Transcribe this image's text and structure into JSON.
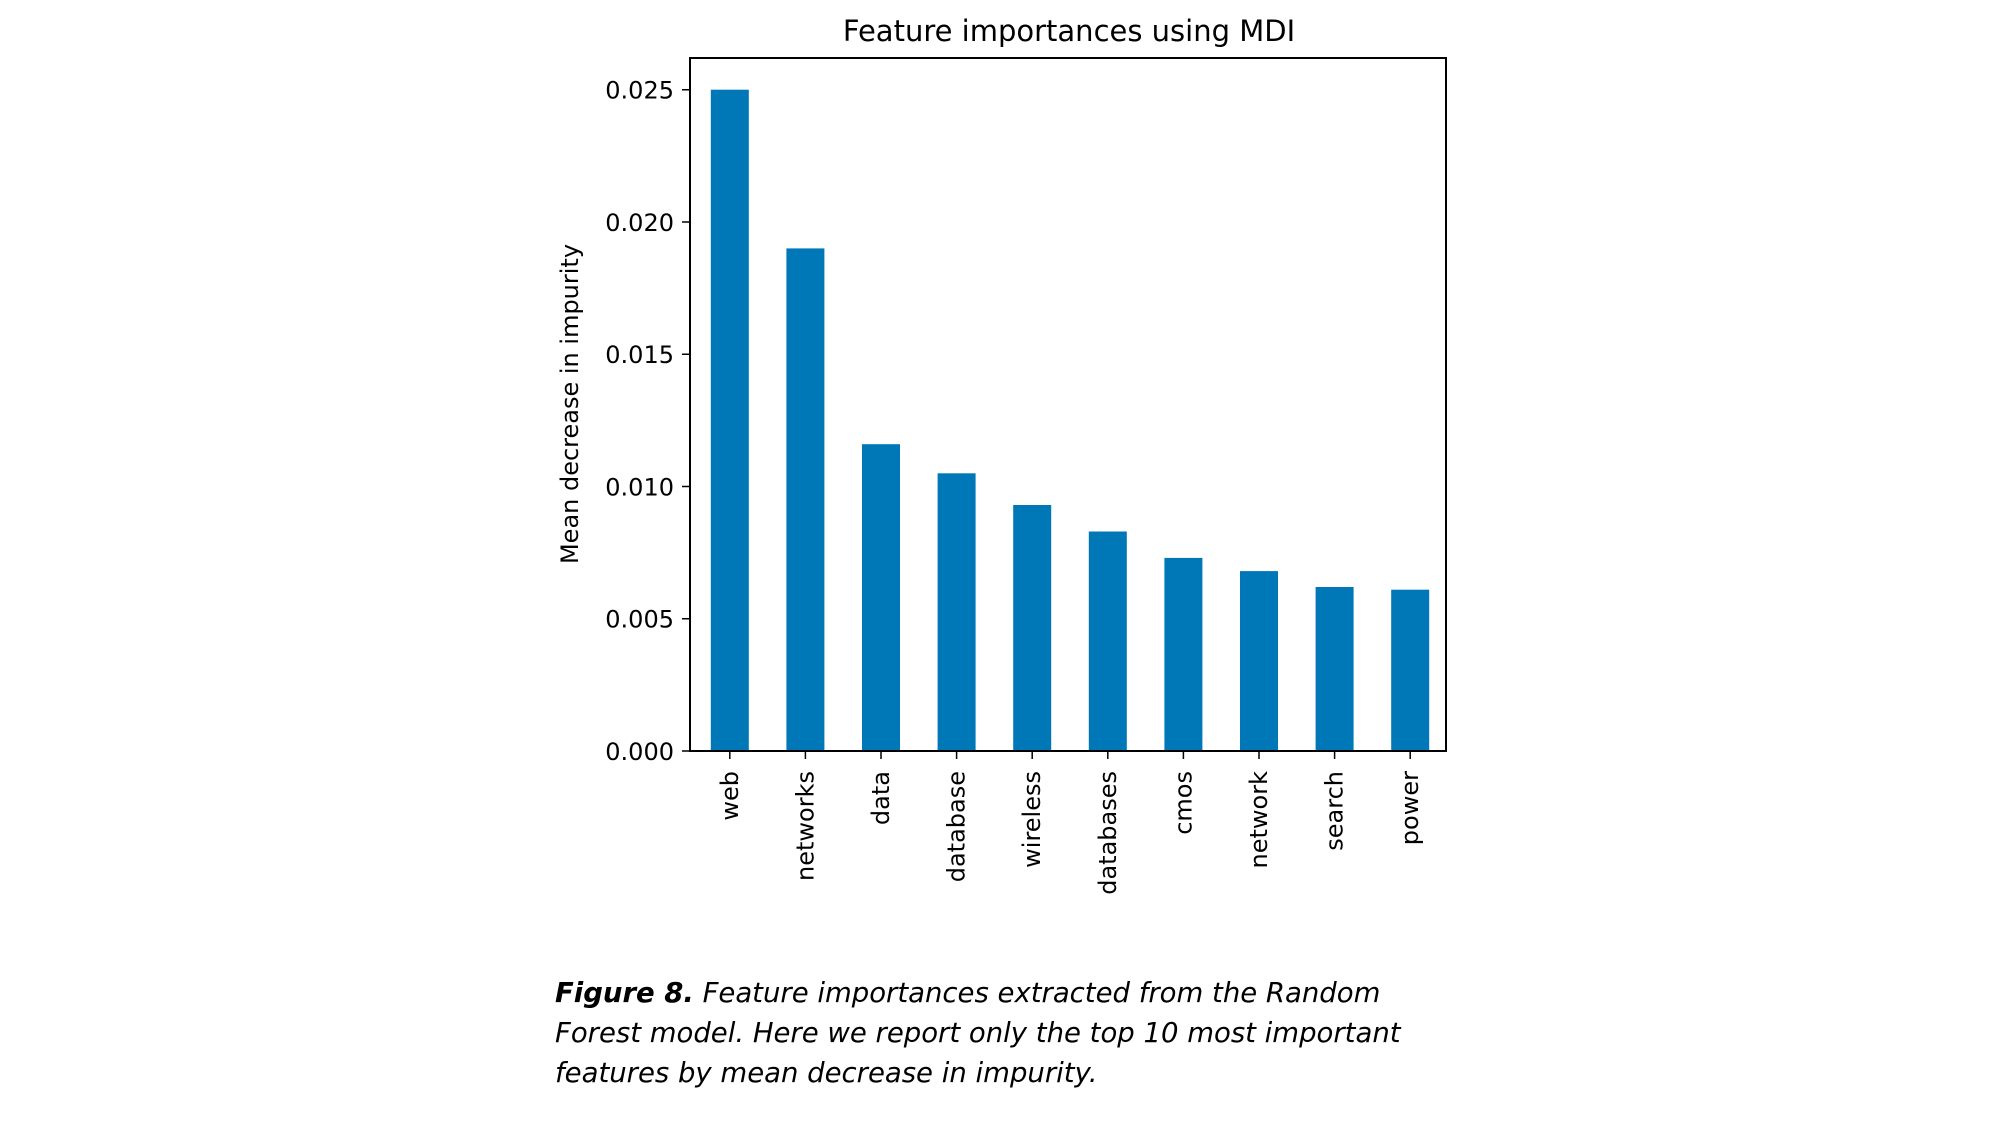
{
  "chart_data": {
    "type": "bar",
    "title": "Feature importances using MDI",
    "xlabel": "",
    "ylabel": "Mean decrease in impurity",
    "categories": [
      "web",
      "networks",
      "data",
      "database",
      "wireless",
      "databases",
      "cmos",
      "network",
      "search",
      "power"
    ],
    "values": [
      0.025,
      0.019,
      0.0116,
      0.0105,
      0.0093,
      0.0083,
      0.0073,
      0.0068,
      0.0062,
      0.0061
    ],
    "ylim": [
      0,
      0.0262
    ],
    "yticks": [
      0.0,
      0.005,
      0.01,
      0.015,
      0.02,
      0.025
    ],
    "ytick_labels": [
      "0.000",
      "0.005",
      "0.010",
      "0.015",
      "0.020",
      "0.025"
    ],
    "grid": false,
    "legend": "none",
    "bar_color": "#0077b6"
  },
  "caption": {
    "label": "Figure 8.",
    "text": " Feature importances extracted from the Random Forest model. Here we report only the top 10 most important features by mean decrease in impurity."
  }
}
